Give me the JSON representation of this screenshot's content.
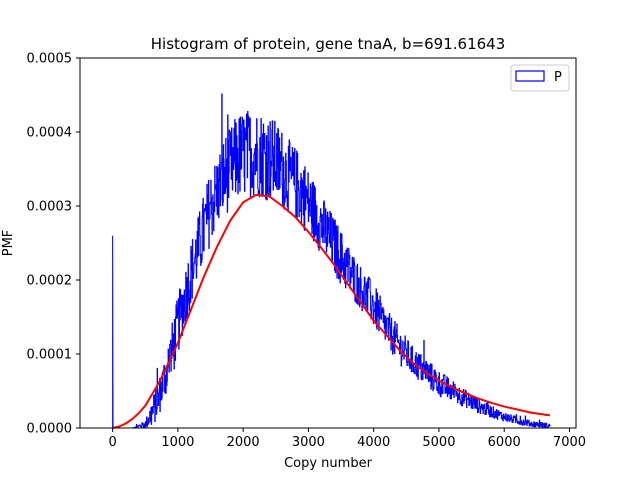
{
  "chart_data": {
    "type": "line",
    "title": "Histogram of protein, gene tnaA, b=691.61643",
    "xlabel": "Copy number",
    "ylabel": "PMF",
    "xlim": [
      -500,
      7100
    ],
    "ylim": [
      0,
      0.0005
    ],
    "xticks": [
      0,
      1000,
      2000,
      3000,
      4000,
      5000,
      6000,
      7000
    ],
    "xtick_labels": [
      "0",
      "1000",
      "2000",
      "3000",
      "4000",
      "5000",
      "6000",
      "7000"
    ],
    "yticks": [
      0,
      0.0001,
      0.0002,
      0.0003,
      0.0004,
      0.0005
    ],
    "ytick_labels": [
      "0.0000",
      "0.0001",
      "0.0002",
      "0.0003",
      "0.0004",
      "0.0005"
    ],
    "legend": {
      "position": "top-right",
      "entries": [
        "P"
      ]
    },
    "series": [
      {
        "name": "P",
        "style": "step",
        "color": "#0000ff",
        "spike": {
          "x": 0,
          "y": 0.00026
        },
        "envelope": {
          "x": [
            0,
            300,
            500,
            600,
            700,
            800,
            900,
            1000,
            1100,
            1200,
            1300,
            1400,
            1500,
            1600,
            1700,
            1800,
            1900,
            2000,
            2100,
            2200,
            2300,
            2400,
            2500,
            2600,
            2700,
            2800,
            2900,
            3000,
            3200,
            3400,
            3600,
            3800,
            4000,
            4200,
            4400,
            4600,
            4800,
            5000,
            5200,
            5400,
            5600,
            5800,
            6000,
            6200,
            6400,
            6700
          ],
          "mean": [
            0,
            0,
            5e-06,
            2e-05,
            4e-05,
            7e-05,
            0.0001,
            0.00014,
            0.000175,
            0.00021,
            0.00024,
            0.00027,
            0.0003,
            0.00032,
            0.00034,
            0.00035,
            0.000365,
            0.00037,
            0.000372,
            0.000372,
            0.00037,
            0.000365,
            0.00036,
            0.00035,
            0.00034,
            0.00033,
            0.00032,
            0.000305,
            0.000275,
            0.000245,
            0.000215,
            0.00019,
            0.000165,
            0.000135,
            0.00011,
            9e-05,
            7.5e-05,
            6e-05,
            5e-05,
            4e-05,
            3e-05,
            2.2e-05,
            1.5e-05,
            1e-05,
            6e-06,
            3e-06
          ],
          "spread": [
            0,
            0,
            5e-06,
            2e-05,
            2.5e-05,
            3e-05,
            4e-05,
            4e-05,
            4e-05,
            4.5e-05,
            4.5e-05,
            5e-05,
            5e-05,
            5e-05,
            5.5e-05,
            5.5e-05,
            6e-05,
            6e-05,
            6e-05,
            6e-05,
            6e-05,
            6e-05,
            5.5e-05,
            5.5e-05,
            5e-05,
            5e-05,
            5e-05,
            4.5e-05,
            4e-05,
            4e-05,
            3.5e-05,
            3e-05,
            3e-05,
            2.5e-05,
            2.5e-05,
            2e-05,
            2e-05,
            1.8e-05,
            1.5e-05,
            1.2e-05,
            1e-05,
            8e-06,
            6e-06,
            5e-06,
            4e-06,
            3e-06
          ]
        }
      },
      {
        "name": "fit",
        "style": "line",
        "color": "#ff0000",
        "x": [
          0,
          100,
          200,
          300,
          400,
          500,
          600,
          700,
          800,
          1000,
          1200,
          1400,
          1600,
          1800,
          2000,
          2200,
          2400,
          2600,
          2800,
          3000,
          3200,
          3400,
          3600,
          3800,
          4000,
          4200,
          4400,
          4600,
          4800,
          5000,
          5200,
          5400,
          5600,
          5800,
          6000,
          6200,
          6400,
          6700
        ],
        "y": [
          0,
          2e-06,
          6e-06,
          1.2e-05,
          2e-05,
          3e-05,
          4.5e-05,
          6e-05,
          7.7e-05,
          0.000115,
          0.00016,
          0.000205,
          0.000245,
          0.00028,
          0.000305,
          0.000315,
          0.000313,
          0.0003,
          0.000285,
          0.000265,
          0.000243,
          0.00022,
          0.000195,
          0.00017,
          0.000145,
          0.000125,
          0.000105,
          8.8e-05,
          7.5e-05,
          6.4e-05,
          5.5e-05,
          4.7e-05,
          4e-05,
          3.4e-05,
          2.9e-05,
          2.5e-05,
          2.1e-05,
          1.7e-05
        ]
      }
    ]
  }
}
